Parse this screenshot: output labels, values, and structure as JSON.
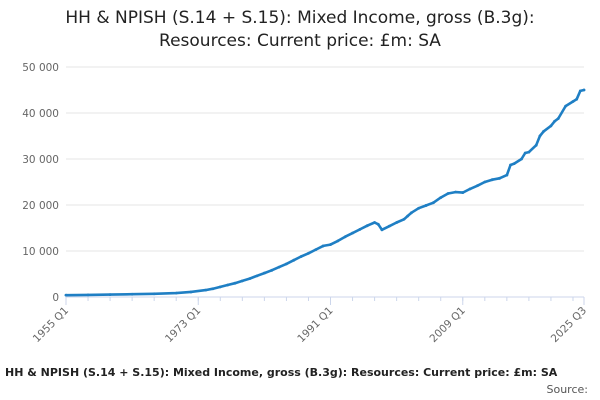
{
  "chart_data": {
    "type": "line",
    "title": "HH & NPISH (S.14 + S.15): Mixed Income, gross (B.3g): Resources: Current price: £m: SA",
    "title_lines": [
      "HH & NPISH (S.14 + S.15): Mixed Income, gross (B.3g):",
      "Resources: Current price: £m: SA"
    ],
    "footer_text": "HH & NPISH (S.14 + S.15): Mixed Income, gross (B.3g): Resources: Current price: £m: SA",
    "source_text": "Source:",
    "xlabel": "",
    "ylabel": "",
    "xlim": [
      1955.0,
      2025.5
    ],
    "ylim": [
      0,
      50000
    ],
    "yticks": [
      0,
      10000,
      20000,
      30000,
      40000,
      50000
    ],
    "ytick_labels": [
      "0",
      "10 000",
      "20 000",
      "30 000",
      "40 000",
      "50 000"
    ],
    "xticks": [
      1955.0,
      1973.0,
      1991.0,
      2009.0,
      2025.5
    ],
    "xtick_labels": [
      "1955 Q1",
      "1973 Q1",
      "1991 Q1",
      "2009 Q1",
      "2025 Q3"
    ],
    "grid": true,
    "line_color": "#1f7fc4",
    "series": [
      {
        "name": "HH & NPISH (S.14 + S.15): Mixed Income, gross (B.3g): Resources: Current price: £m: SA",
        "x": [
          1955.0,
          1958.0,
          1961.0,
          1964.0,
          1967.0,
          1970.0,
          1972.0,
          1974.0,
          1975.0,
          1976.0,
          1977.0,
          1978.0,
          1979.0,
          1980.0,
          1981.0,
          1982.0,
          1983.0,
          1984.0,
          1985.0,
          1986.0,
          1987.0,
          1988.0,
          1989.0,
          1990.0,
          1991.0,
          1992.0,
          1993.0,
          1994.0,
          1995.0,
          1996.0,
          1997.0,
          1997.5,
          1998.0,
          1999.0,
          2000.0,
          2001.0,
          2001.5,
          2002.0,
          2003.0,
          2004.0,
          2005.0,
          2006.0,
          2007.0,
          2008.0,
          2009.0,
          2010.0,
          2011.0,
          2012.0,
          2013.0,
          2014.0,
          2015.0,
          2015.5,
          2016.0,
          2017.0,
          2017.5,
          2018.0,
          2019.0,
          2019.5,
          2020.0,
          2021.0,
          2021.5,
          2022.0,
          2023.0,
          2024.0,
          2024.5,
          2025.0,
          2025.5
        ],
        "values": [
          400,
          450,
          520,
          600,
          700,
          850,
          1100,
          1500,
          1800,
          2200,
          2600,
          3000,
          3500,
          4000,
          4600,
          5200,
          5800,
          6500,
          7200,
          8000,
          8800,
          9500,
          10300,
          11100,
          11400,
          12200,
          13100,
          13900,
          14700,
          15500,
          16200,
          15800,
          14600,
          15400,
          16200,
          16900,
          17600,
          18300,
          19300,
          19900,
          20500,
          21600,
          22500,
          22800,
          22700,
          23500,
          24200,
          25000,
          25500,
          25800,
          26500,
          28700,
          29000,
          30000,
          31300,
          31500,
          33000,
          35000,
          36000,
          37200,
          38200,
          38800,
          41500,
          42500,
          43000,
          44800,
          45000
        ]
      }
    ]
  }
}
